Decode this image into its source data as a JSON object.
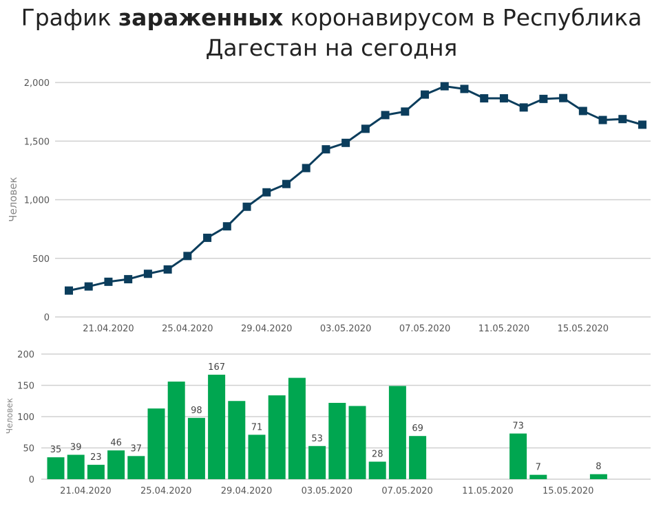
{
  "title": {
    "pre": "График ",
    "bold": "зараженных",
    "post_line1": " коронавирусом в Республика",
    "line2": "Дагестан на сегодня"
  },
  "colors": {
    "line": "#0b3d5c",
    "bar": "#00a650"
  },
  "chart_data": [
    {
      "type": "line",
      "ylabel": "Человек",
      "ylim": [
        0,
        2000
      ],
      "yticks": [
        "0",
        "500",
        "1,000",
        "1,500",
        "2,000"
      ],
      "ytick_values": [
        0,
        500,
        1000,
        1500,
        2000
      ],
      "xtick_labels": [
        "21.04.2020",
        "25.04.2020",
        "29.04.2020",
        "03.05.2020",
        "07.05.2020",
        "11.05.2020",
        "15.05.2020"
      ],
      "xtick_indices": [
        2,
        6,
        10,
        14,
        18,
        22,
        26
      ],
      "grid": true,
      "series": [
        {
          "values": [
            225,
            260,
            300,
            322,
            368,
            405,
            520,
            675,
            773,
            940,
            1063,
            1134,
            1270,
            1430,
            1485,
            1605,
            1722,
            1752,
            1897,
            1968,
            1945,
            1865,
            1865,
            1787,
            1860,
            1867,
            1757,
            1680,
            1688,
            1640
          ]
        }
      ]
    },
    {
      "type": "bar",
      "ylabel": "Человек",
      "ylim": [
        0,
        200
      ],
      "yticks": [
        "0",
        "50",
        "100",
        "150",
        "200"
      ],
      "ytick_values": [
        0,
        50,
        100,
        150,
        200
      ],
      "xtick_labels": [
        "21.04.2020",
        "25.04.2020",
        "29.04.2020",
        "03.05.2020",
        "07.05.2020",
        "11.05.2020",
        "15.05.2020"
      ],
      "xtick_indices": [
        2,
        6,
        10,
        14,
        18,
        22,
        26
      ],
      "grid": true,
      "values": [
        35,
        39,
        23,
        46,
        37,
        113,
        156,
        98,
        167,
        125,
        71,
        134,
        162,
        53,
        122,
        117,
        28,
        149,
        69,
        0,
        0,
        0,
        0,
        73,
        7,
        0,
        0,
        8,
        0
      ],
      "data_labels": [
        "35",
        "39",
        "23",
        "46",
        "37",
        "",
        "",
        "98",
        "167",
        "",
        "71",
        "",
        "",
        "53",
        "",
        "",
        "28",
        "",
        "69",
        "",
        "",
        "",
        "",
        "73",
        "7",
        "",
        "",
        "8",
        ""
      ]
    }
  ]
}
